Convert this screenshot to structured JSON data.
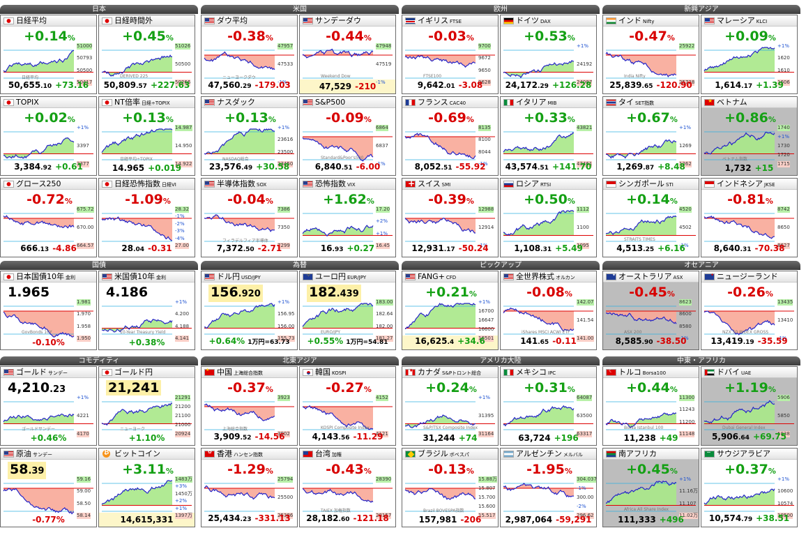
{
  "regions": [
    {
      "id": "japan",
      "title": "日本"
    },
    {
      "id": "usa",
      "title": "米国"
    },
    {
      "id": "europe",
      "title": "欧州"
    },
    {
      "id": "emerging_asia",
      "title": "新興アジア"
    },
    {
      "id": "bonds",
      "title": "国債"
    },
    {
      "id": "fx",
      "title": "為替"
    },
    {
      "id": "pickup",
      "title": "ピックアップ"
    },
    {
      "id": "oceania",
      "title": "オセアニア"
    },
    {
      "id": "commodity",
      "title": "コモディティ"
    },
    {
      "id": "ne_asia",
      "title": "北東アジア"
    },
    {
      "id": "americas",
      "title": "アメリカ大陸"
    },
    {
      "id": "me_africa",
      "title": "中東・アフリカ"
    }
  ],
  "cells": [
    {
      "key": "nikkei",
      "name": "日経平均",
      "ticker": "",
      "flag": "jp",
      "dir": "up",
      "change": "+0.14",
      "pct": "%",
      "price_main": "50,655",
      "price_dec": ".10",
      "delta": "+73.16",
      "labels": [
        "51000",
        "50793",
        "50500",
        "50417"
      ],
      "watermark": "日経平均",
      "shape": "A"
    },
    {
      "key": "nikkei_night",
      "name": "日経時間外",
      "ticker": "",
      "flag": "jp",
      "dir": "up",
      "change": "+0.45",
      "pct": "%",
      "price_main": "50,809",
      "price_dec": ".57",
      "delta": "+227.63",
      "labels": [
        "51026",
        "50500",
        "50266"
      ],
      "watermark": "DERIVED 225",
      "shape": "B"
    },
    {
      "key": "dow",
      "name": "ダウ平均",
      "ticker": "",
      "flag": "us",
      "dir": "dn",
      "change": "-0.38",
      "pct": "%",
      "price_main": "47,560",
      "price_dec": ".29",
      "delta": "-179.03",
      "labels": [
        "47957",
        "47533",
        "-1%"
      ],
      "watermark": "ニューヨークダウ",
      "shape": "C"
    },
    {
      "key": "sunday_dow",
      "name": "サンデーダウ",
      "ticker": "",
      "flag": "us",
      "dir": "dn",
      "change": "-0.44",
      "pct": "%",
      "price_main": "47,529",
      "price_dec": "",
      "delta": "-210",
      "labels": [
        "47948",
        "47519",
        "-1%"
      ],
      "watermark": "Weekend Dow",
      "shape": "D",
      "yellow": true
    },
    {
      "key": "ftse",
      "name": "イギリス",
      "ticker": "FTSE",
      "flag": "uk",
      "dir": "dn",
      "change": "-0.03",
      "pct": "%",
      "price_main": "9,642",
      "price_dec": ".01",
      "delta": "-3.08",
      "labels": [
        "9700",
        "9672",
        "9650",
        "9628"
      ],
      "watermark": "FTSE100",
      "shape": "E"
    },
    {
      "key": "dax",
      "name": "ドイツ",
      "ticker": "DAX",
      "flag": "de",
      "dir": "up",
      "change": "+0.53",
      "pct": "%",
      "price_main": "24,172",
      "price_dec": ".29",
      "delta": "+126.28",
      "labels": [
        "+1%",
        "24192",
        "24087"
      ],
      "watermark": "",
      "shape": "F"
    },
    {
      "key": "nifty",
      "name": "インド",
      "ticker": "Nifty",
      "flag": "in",
      "dir": "dn",
      "change": "-0.47",
      "pct": "%",
      "price_main": "25,839",
      "price_dec": ".65",
      "delta": "-120.90",
      "labels": [
        "25922",
        "25728"
      ],
      "watermark": "India Nifty",
      "shape": "G"
    },
    {
      "key": "klci",
      "name": "マレーシア",
      "ticker": "KLCI",
      "flag": "my",
      "dir": "up",
      "change": "+0.09",
      "pct": "%",
      "price_main": "1,614",
      "price_dec": ".17",
      "delta": "+1.39",
      "labels": [
        "+1%",
        "1620",
        "1610",
        "1606"
      ],
      "watermark": "",
      "shape": "H"
    },
    {
      "key": "topix",
      "name": "TOPIX",
      "ticker": "",
      "flag": "jp",
      "dir": "up",
      "change": "+0.02",
      "pct": "%",
      "price_main": "3,384",
      "price_dec": ".92",
      "delta": "+0.61",
      "labels": [
        "+1%",
        "3397",
        "3377"
      ],
      "watermark": "",
      "shape": "I"
    },
    {
      "key": "nt",
      "name": "NT倍率",
      "ticker": "日経÷TOPIX",
      "flag": "jp",
      "dir": "up",
      "change": "+0.13",
      "pct": "%",
      "price_main": "14.965",
      "price_dec": "",
      "delta": "+0.019",
      "labels": [
        "14.987",
        "14.950",
        "14.922"
      ],
      "watermark": "日経平均÷TOPIX",
      "shape": "J"
    },
    {
      "key": "nasdaq",
      "name": "ナスダック",
      "ticker": "",
      "flag": "us",
      "dir": "up",
      "change": "+0.13",
      "pct": "%",
      "price_main": "23,576",
      "price_dec": ".49",
      "delta": "+30.58",
      "labels": [
        "+1%",
        "23616",
        "23500",
        "23450"
      ],
      "watermark": "NASDAQ総合",
      "shape": "K"
    },
    {
      "key": "sp500",
      "name": "S&P500",
      "ticker": "",
      "flag": "us",
      "dir": "dn",
      "change": "-0.09",
      "pct": "%",
      "price_main": "6,840",
      "price_dec": ".51",
      "delta": "-6.00",
      "labels": [
        "6864",
        "6837",
        "-1%"
      ],
      "watermark": "Standard&Poor's500",
      "shape": "L"
    },
    {
      "key": "cac",
      "name": "フランス",
      "ticker": "CAC40",
      "flag": "fr",
      "dir": "dn",
      "change": "-0.69",
      "pct": "%",
      "price_main": "8,052",
      "price_dec": ".51",
      "delta": "-55.92",
      "labels": [
        "8135",
        "8100",
        "8044",
        "-1%"
      ],
      "watermark": "",
      "shape": "M"
    },
    {
      "key": "mib",
      "name": "イタリア",
      "ticker": "MIB",
      "flag": "it",
      "dir": "up",
      "change": "+0.33",
      "pct": "%",
      "price_main": "43,574",
      "price_dec": ".51",
      "delta": "+141.70",
      "labels": [
        "43821",
        "43461"
      ],
      "watermark": "",
      "shape": "N"
    },
    {
      "key": "set",
      "name": "タイ",
      "ticker": "SET指数",
      "flag": "th",
      "dir": "up",
      "change": "+0.67",
      "pct": "%",
      "price_main": "1,269",
      "price_dec": ".87",
      "delta": "+8.48",
      "labels": [
        "+1%",
        "1269",
        "1262"
      ],
      "watermark": "",
      "shape": "O"
    },
    {
      "key": "vn",
      "name": "ベトナム",
      "ticker": "",
      "flag": "vn",
      "dir": "up",
      "change": "+0.86",
      "pct": "%",
      "price_main": "1,732",
      "price_dec": "",
      "delta": "+15",
      "labels": [
        "1740",
        "+1%",
        "1730",
        "1720",
        "1715"
      ],
      "watermark": "ベトナム指数",
      "shape": "P",
      "dark": true
    },
    {
      "key": "growth",
      "name": "グロース250",
      "ticker": "",
      "flag": "jp",
      "dir": "dn",
      "change": "-0.72",
      "pct": "%",
      "price_main": "666",
      "price_dec": ".13",
      "delta": "-4.86",
      "labels": [
        "675.72",
        "670.00",
        "664.57"
      ],
      "watermark": "",
      "shape": "Q"
    },
    {
      "key": "nkvi",
      "name": "日経恐怖指数",
      "ticker": "日経VI",
      "flag": "jp",
      "dir": "dn",
      "change": "-1.09",
      "pct": "%",
      "price_main": "28",
      "price_dec": ".04",
      "delta": "-0.31",
      "labels": [
        "28.32",
        "-1%",
        "-2%",
        "-3%",
        "-4%",
        "27.00"
      ],
      "watermark": "",
      "shape": "R"
    },
    {
      "key": "sox",
      "name": "半導体指数",
      "ticker": "SOX",
      "flag": "us",
      "dir": "dn",
      "change": "-0.04",
      "pct": "%",
      "price_main": "7,372",
      "price_dec": ".50",
      "delta": "-2.71",
      "labels": [
        "7386",
        "7350",
        "7299"
      ],
      "watermark": "フィラデルフィア半導体",
      "shape": "S"
    },
    {
      "key": "vix",
      "name": "恐怖指数",
      "ticker": "VIX",
      "flag": "us",
      "dir": "up",
      "change": "+1.62",
      "pct": "%",
      "price_main": "16",
      "price_dec": ".93",
      "delta": "+0.27",
      "labels": [
        "17.20",
        "+2%",
        "+1%",
        "16.45"
      ],
      "watermark": "",
      "shape": "T"
    },
    {
      "key": "smi",
      "name": "スイス",
      "ticker": "SMI",
      "flag": "ch",
      "dir": "dn",
      "change": "-0.39",
      "pct": "%",
      "price_main": "12,931",
      "price_dec": ".17",
      "delta": "-50.24",
      "labels": [
        "12988",
        "12914",
        "-1%"
      ],
      "watermark": "",
      "shape": "U"
    },
    {
      "key": "rtsi",
      "name": "ロシア",
      "ticker": "RTSI",
      "flag": "ru",
      "dir": "up",
      "change": "+0.50",
      "pct": "%",
      "price_main": "1,108",
      "price_dec": ".31",
      "delta": "+5.49",
      "labels": [
        "1112",
        "1100",
        "1095"
      ],
      "watermark": "",
      "shape": "V"
    },
    {
      "key": "sti",
      "name": "シンガポール",
      "ticker": "STI",
      "flag": "sg",
      "dir": "up",
      "change": "+0.14",
      "pct": "%",
      "price_main": "4,513",
      "price_dec": ".25",
      "delta": "+6.16",
      "labels": [
        "4520",
        "4502",
        "-1%"
      ],
      "watermark": "STRAITS TIMES",
      "shape": "W"
    },
    {
      "key": "jkse",
      "name": "インドネシア",
      "ticker": "JKSE",
      "flag": "id",
      "dir": "dn",
      "change": "-0.81",
      "pct": "%",
      "price_main": "8,640",
      "price_dec": ".31",
      "delta": "-70.38",
      "labels": [
        "8742",
        "8650",
        "8627"
      ],
      "watermark": "",
      "shape": "X"
    },
    {
      "key": "jgb10",
      "name": "日本国債10年",
      "ticker": "金利",
      "flag": "jp",
      "dir": "bk",
      "big": "1.965",
      "big_dec": "",
      "labels": [
        "1.981",
        "1.970",
        "1.958",
        "1.950"
      ],
      "bottom_pct": "-0.10%",
      "bottom_dir": "dn",
      "watermark": "GovBonds 10Y",
      "shape": "Y"
    },
    {
      "key": "ust10",
      "name": "米国債10年",
      "ticker": "金利",
      "flag": "us",
      "dir": "bk",
      "big": "4.186",
      "big_dec": "",
      "labels": [
        "+1%",
        "4.200",
        "4.188",
        "4.141"
      ],
      "bottom_pct": "+0.38%",
      "bottom_dir": "up",
      "watermark": "10-Year Treasury Yield",
      "shape": "Z"
    },
    {
      "key": "usdjpy",
      "name": "ドル円",
      "ticker": "USD/JPY",
      "flag": "us",
      "dir": "bk",
      "big": "156",
      "big_dec": ".920",
      "ybig": true,
      "labels": [
        "+1%",
        "156.95",
        "156.00",
        "155.73"
      ],
      "bottom_pct": "+0.64%",
      "bottom_dir": "up",
      "bottom_extra": "1万円=63.73",
      "watermark": "",
      "shape": "AA"
    },
    {
      "key": "eurjpy",
      "name": "ユーロ円",
      "ticker": "EUR/JPY",
      "flag": "eu",
      "dir": "bk",
      "big": "182",
      "big_dec": ".439",
      "ybig": true,
      "labels": [
        "183.00",
        "182.64",
        "182.00",
        "181.27"
      ],
      "bottom_pct": "+0.55%",
      "bottom_dir": "up",
      "bottom_extra": "1万円=54.81",
      "watermark": "EURO/JPY",
      "shape": "AB"
    },
    {
      "key": "fang",
      "name": "FANG+",
      "ticker": "CFD",
      "flag": "us",
      "dir": "up",
      "change": "+0.21",
      "pct": "%",
      "price_main": "16,625",
      "price_dec": ".4",
      "delta": "+34.6",
      "labels": [
        "+1%",
        "16700",
        "16647",
        "16600",
        "16501"
      ],
      "watermark": "",
      "shape": "AC",
      "yellow": true
    },
    {
      "key": "acwi",
      "name": "全世界株式",
      "ticker": "オルカン",
      "flag": "us",
      "dir": "dn",
      "change": "-0.08",
      "pct": "%",
      "price_main": "141",
      "price_dec": ".65",
      "delta": "-0.11",
      "labels": [
        "142.07",
        "141.54",
        "141.00"
      ],
      "watermark": "iShares MSCI ACWI ETF",
      "shape": "AD"
    },
    {
      "key": "asx",
      "name": "オーストラリア",
      "ticker": "ASX",
      "flag": "au",
      "dir": "dn",
      "change": "-0.45",
      "pct": "%",
      "price_main": "8,585",
      "price_dec": ".90",
      "delta": "-38.50",
      "labels": [
        "8623",
        "8600",
        "8580",
        "-1%"
      ],
      "watermark": "ASX 200",
      "shape": "AE",
      "dark": true
    },
    {
      "key": "nz",
      "name": "ニュージーランド",
      "ticker": "",
      "flag": "nz",
      "dir": "dn",
      "change": "-0.26",
      "pct": "%",
      "price_main": "13,419",
      "price_dec": ".19",
      "delta": "-35.59",
      "labels": [
        "13435",
        "13410",
        "-1%"
      ],
      "watermark": "NZX 50 INDEX GROSS",
      "shape": "AF"
    },
    {
      "key": "gold",
      "name": "ゴールド",
      "ticker": "サンデー",
      "flag": "us",
      "dir": "bk",
      "big": "4,210",
      "big_dec": ".23",
      "labels": [
        "+1%",
        "4221",
        "4170"
      ],
      "bottom_pct": "+0.46%",
      "bottom_dir": "up",
      "watermark": "ゴールドサンデー",
      "shape": "AG"
    },
    {
      "key": "goldjpy",
      "name": "ゴールド円",
      "ticker": "",
      "flag": "jp",
      "dir": "bk",
      "big": "21,241",
      "big_dec": "",
      "ybig": true,
      "labels": [
        "21291",
        "21200",
        "21100",
        "21000",
        "20924"
      ],
      "bottom_pct": "+1.10%",
      "bottom_dir": "up",
      "watermark": "ニューヨーク",
      "shape": "AH"
    },
    {
      "key": "shanghai",
      "name": "中国",
      "ticker": "上海総合指数",
      "flag": "cn",
      "dir": "dn",
      "change": "-0.37",
      "pct": "%",
      "price_main": "3,909",
      "price_dec": ".52",
      "delta": "-14.56",
      "labels": [
        "3923",
        "3902"
      ],
      "watermark": "上海総合指数",
      "shape": "AI"
    },
    {
      "key": "kospi",
      "name": "韓国",
      "ticker": "KOSPI",
      "flag": "kr",
      "dir": "dn",
      "change": "-0.27",
      "pct": "%",
      "price_main": "4,143",
      "price_dec": ".56",
      "delta": "-11.29",
      "labels": [
        "4152",
        "4121"
      ],
      "watermark": "KOSPI Composite Index",
      "shape": "AJ"
    },
    {
      "key": "tsx",
      "name": "カナダ",
      "ticker": "S&Pトロント総合",
      "flag": "ca",
      "dir": "up",
      "change": "+0.24",
      "pct": "%",
      "price_main": "31,244",
      "price_dec": "",
      "delta": "+74",
      "labels": [
        "+1%",
        "31395",
        "31164"
      ],
      "watermark": "S&P/TSX Composite Index",
      "shape": "AK"
    },
    {
      "key": "ipc",
      "name": "メキシコ",
      "ticker": "IPC",
      "flag": "mx",
      "dir": "up",
      "change": "+0.31",
      "pct": "%",
      "price_main": "63,724",
      "price_dec": "",
      "delta": "+196",
      "labels": [
        "64087",
        "63500",
        "63317"
      ],
      "watermark": "",
      "shape": "AL"
    },
    {
      "key": "bist",
      "name": "トルコ",
      "ticker": "Borsa100",
      "flag": "tr",
      "dir": "up",
      "change": "+0.44",
      "pct": "%",
      "price_main": "11,238",
      "price_dec": "",
      "delta": "+49",
      "labels": [
        "11300",
        "11243",
        "11200",
        "11148"
      ],
      "watermark": "Borsa Istanbul 100",
      "shape": "AM"
    },
    {
      "key": "dubai",
      "name": "ドバイ",
      "ticker": "UAE",
      "flag": "ae",
      "dir": "up",
      "change": "+1.19",
      "pct": "%",
      "price_main": "5,906",
      "price_dec": ".64",
      "delta": "+69.75",
      "labels": [
        "5906",
        "5850",
        "5838"
      ],
      "watermark": "Dubai General Index",
      "shape": "AN",
      "dark": true
    },
    {
      "key": "oil",
      "name": "原油",
      "ticker": "サンデー",
      "flag": "us",
      "dir": "bk",
      "big": "58",
      "big_dec": ".39",
      "ybig": true,
      "labels": [
        "59.16",
        "59.00",
        "58.50",
        "58.14"
      ],
      "bottom_pct": "-0.77%",
      "bottom_dir": "dn",
      "watermark": "",
      "shape": "AO"
    },
    {
      "key": "btc",
      "name": "ビットコイン",
      "ticker": "",
      "flag": "btc",
      "dir": "up",
      "change": "+3.11",
      "pct": "%",
      "labels": [
        "1483万",
        "+3%",
        "1450万",
        "+2%",
        "+1%",
        "1397万"
      ],
      "bottom_plain": "14,615,331",
      "watermark": "",
      "shape": "AP",
      "yellow": true
    },
    {
      "key": "hsi",
      "name": "香港",
      "ticker": "ハンセン指数",
      "flag": "hk",
      "dir": "dn",
      "change": "-1.29",
      "pct": "%",
      "price_main": "25,434",
      "price_dec": ".23",
      "delta": "-331.13",
      "labels": [
        "25794",
        "25500",
        "25386"
      ],
      "watermark": "",
      "shape": "AQ"
    },
    {
      "key": "twii",
      "name": "台湾",
      "ticker": "加権",
      "flag": "tw",
      "dir": "dn",
      "change": "-0.43",
      "pct": "%",
      "price_main": "28,182",
      "price_dec": ".60",
      "delta": "-121.18",
      "labels": [
        "28390",
        "28157"
      ],
      "watermark": "TAIEX 加権指数",
      "shape": "AR"
    },
    {
      "key": "bovespa",
      "name": "ブラジル",
      "ticker": "ボベスパ",
      "flag": "br",
      "dir": "dn",
      "change": "-0.13",
      "pct": "%",
      "price_main": "157,981",
      "price_dec": "",
      "delta": "-206",
      "labels": [
        "15.88万",
        "15.807",
        "15.700",
        "15.600",
        "15.517"
      ],
      "watermark": "Brazil BOVESPA指数",
      "shape": "AS"
    },
    {
      "key": "merval",
      "name": "アルゼンチン",
      "ticker": "メルバル",
      "flag": "ar",
      "dir": "dn",
      "change": "-1.95",
      "pct": "%",
      "price_main": "2,987,064",
      "price_dec": "",
      "delta": "-59,291",
      "labels": [
        "304.037",
        "-1%",
        "300.00",
        "-2%",
        "296.62"
      ],
      "watermark": "",
      "shape": "AT"
    },
    {
      "key": "jse",
      "name": "南アフリカ",
      "ticker": "",
      "flag": "za",
      "dir": "up",
      "change": "+0.45",
      "pct": "%",
      "price_main": "111,333",
      "price_dec": "",
      "delta": "+496",
      "labels": [
        "+1%",
        "11.16万",
        "11.107",
        "11.02万"
      ],
      "watermark": "Africa All Share Index",
      "shape": "AU",
      "dark": true
    },
    {
      "key": "tasi",
      "name": "サウジアラビア",
      "ticker": "",
      "flag": "sa",
      "dir": "up",
      "change": "+0.37",
      "pct": "%",
      "price_main": "10,574",
      "price_dec": ".79",
      "delta": "+38.51",
      "labels": [
        "+1%",
        "10600",
        "10574",
        "10500"
      ],
      "watermark": "",
      "shape": "AV"
    }
  ]
}
